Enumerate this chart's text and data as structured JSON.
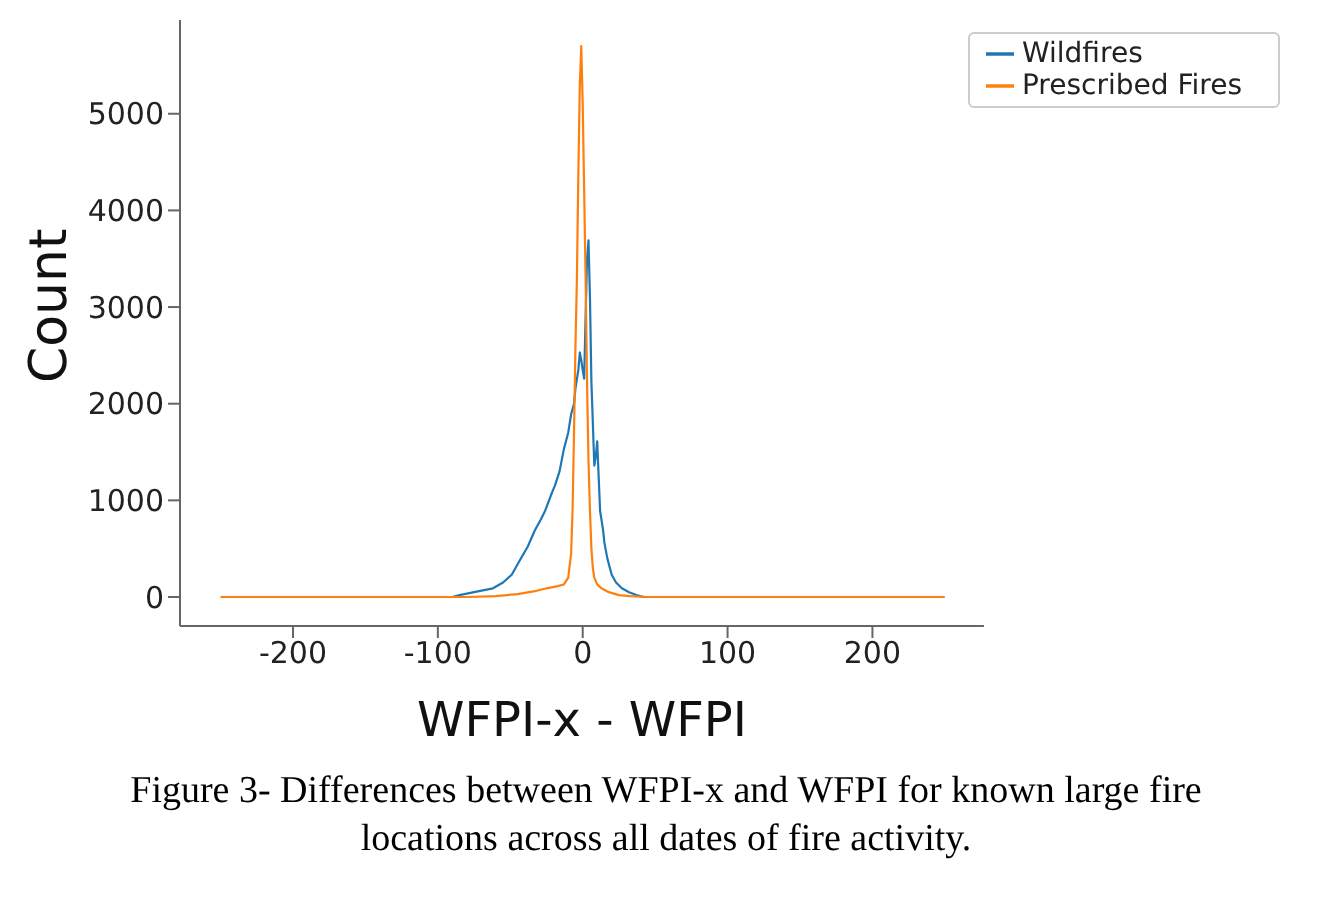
{
  "chart_data": {
    "type": "line",
    "xlabel": "WFPI-x - WFPI",
    "ylabel": "Count",
    "xlim": [
      -278,
      277
    ],
    "ylim": [
      -300,
      5970
    ],
    "xticks": [
      -200,
      -100,
      0,
      100,
      200
    ],
    "yticks": [
      0,
      1000,
      2000,
      3000,
      4000,
      5000
    ],
    "grid": false,
    "legend": "top right",
    "marker": "none",
    "line_style": "solid",
    "series": [
      {
        "name": "Wildfires",
        "color": "#1f77b4",
        "x": [
          -90,
          -85,
          -75,
          -62,
          -55,
          -49,
          -43,
          -38,
          -33,
          -29,
          -26,
          -22,
          -19,
          -16,
          -13,
          -10,
          -8,
          -6,
          -5,
          -3,
          -2,
          -1,
          0,
          1,
          2,
          3,
          4,
          5,
          6,
          7,
          8,
          9,
          10,
          11,
          12,
          14,
          15,
          17,
          20,
          23,
          27,
          32,
          37,
          42,
          46
        ],
        "values": [
          0,
          20,
          50,
          90,
          150,
          230,
          390,
          520,
          690,
          800,
          890,
          1050,
          1160,
          1300,
          1530,
          1700,
          1890,
          2000,
          2160,
          2350,
          2530,
          2450,
          2350,
          2260,
          2900,
          3500,
          3690,
          3100,
          2230,
          1800,
          1360,
          1450,
          1610,
          1250,
          890,
          700,
          560,
          400,
          230,
          150,
          90,
          50,
          20,
          0,
          0
        ]
      },
      {
        "name": "Prescribed Fires",
        "color": "#ff7f0e",
        "x": [
          -250,
          -200,
          -150,
          -100,
          -80,
          -60,
          -45,
          -33,
          -25,
          -18,
          -13,
          -10,
          -8,
          -7,
          -6,
          -5,
          -4,
          -3,
          -2,
          -1,
          0,
          1,
          2,
          3,
          4,
          5,
          6,
          7,
          8,
          10,
          13,
          18,
          25,
          33,
          45,
          60,
          100,
          150,
          200,
          250
        ],
        "values": [
          0,
          0,
          0,
          0,
          0,
          10,
          30,
          60,
          90,
          110,
          130,
          200,
          450,
          900,
          1700,
          2600,
          3300,
          4400,
          5300,
          5700,
          5100,
          4200,
          3300,
          2200,
          1400,
          900,
          500,
          300,
          200,
          130,
          90,
          50,
          20,
          10,
          0,
          0,
          0,
          0,
          0,
          0
        ]
      }
    ],
    "annotations": [
      "Figure 3- Differences between WFPI-x and WFPI for known large fire locations across all dates of fire activity."
    ]
  }
}
